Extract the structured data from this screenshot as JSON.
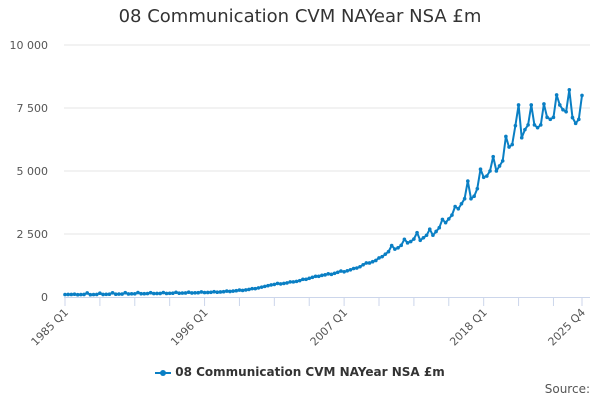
{
  "chart_data": {
    "type": "line",
    "title": "08 Communication CVM NAYear NSA £m",
    "xlabel": "",
    "ylabel": "",
    "ylim": [
      0,
      10000
    ],
    "yticks": [
      "0",
      "2 500",
      "5 000",
      "7 500",
      "10 000"
    ],
    "ytick_values": [
      0,
      2500,
      5000,
      7500,
      10000
    ],
    "x_start": "1985 Q1",
    "x_end": "2025 Q4",
    "xtick_labels": [
      {
        "label": "1985 Q1",
        "index": 0
      },
      {
        "label": "1996 Q1",
        "index": 44
      },
      {
        "label": "2007 Q1",
        "index": 88
      },
      {
        "label": "2018 Q1",
        "index": 132
      },
      {
        "label": "2025 Q4",
        "index": 163
      }
    ],
    "grid": true,
    "legend_position": "bottom",
    "color": "#0a7fc4",
    "series": [
      {
        "name": "08 Communication CVM NAYear NSA £m",
        "values": [
          95,
          100,
          100,
          110,
          90,
          95,
          100,
          160,
          90,
          95,
          100,
          150,
          100,
          105,
          110,
          165,
          110,
          115,
          115,
          170,
          120,
          125,
          125,
          175,
          130,
          130,
          135,
          170,
          135,
          140,
          140,
          175,
          140,
          145,
          150,
          185,
          150,
          155,
          160,
          190,
          160,
          165,
          170,
          200,
          175,
          180,
          185,
          210,
          190,
          200,
          210,
          235,
          220,
          235,
          250,
          275,
          260,
          280,
          300,
          330,
          330,
          360,
          390,
          420,
          450,
          480,
          500,
          540,
          520,
          540,
          560,
          600,
          600,
          620,
          650,
          700,
          700,
          740,
          780,
          820,
          820,
          860,
          880,
          920,
          900,
          940,
          980,
          1030,
          1000,
          1040,
          1080,
          1130,
          1150,
          1200,
          1280,
          1350,
          1350,
          1400,
          1450,
          1550,
          1600,
          1700,
          1800,
          2040,
          1900,
          1950,
          2050,
          2290,
          2150,
          2200,
          2300,
          2555,
          2250,
          2350,
          2450,
          2690,
          2450,
          2600,
          2750,
          3080,
          2950,
          3100,
          3250,
          3590,
          3500,
          3700,
          3900,
          4600,
          3900,
          4000,
          4300,
          5070,
          4750,
          4800,
          5000,
          5570,
          5000,
          5200,
          5400,
          6370,
          5950,
          6050,
          6800,
          7620,
          6320,
          6640,
          6830,
          7620,
          6830,
          6720,
          6830,
          7660,
          7130,
          7050,
          7130,
          8020,
          7620,
          7430,
          7350,
          8220,
          7120,
          6890,
          7050,
          8000
        ]
      }
    ],
    "source_label": "Source:"
  }
}
